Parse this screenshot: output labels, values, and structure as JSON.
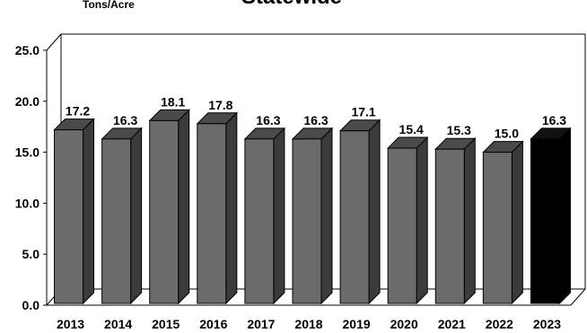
{
  "chart_data": {
    "type": "bar",
    "title": "Statewide",
    "unit_label": "Tons/Acre",
    "categories": [
      "2013",
      "2014",
      "2015",
      "2016",
      "2017",
      "2018",
      "2019",
      "2020",
      "2021",
      "2022",
      "2023"
    ],
    "values": [
      17.2,
      16.3,
      18.1,
      17.8,
      16.3,
      16.3,
      17.1,
      15.4,
      15.3,
      15.0,
      16.3
    ],
    "data_labels": [
      "17.2",
      "16.3",
      "18.1",
      "17.8",
      "16.3",
      "16.3",
      "17.1",
      "15.4",
      "15.3",
      "15.0",
      "16.3"
    ],
    "y_ticks": [
      "0.0",
      "5.0",
      "10.0",
      "15.0",
      "20.0",
      "25.0"
    ],
    "ylim": [
      0,
      25
    ],
    "grid": false,
    "legend": "none",
    "bar_colors": {
      "default_front": "#6b6b6b",
      "default_top": "#4a4a4a",
      "default_side": "#3b3b3b",
      "highlight_front": "#000000",
      "highlight_top": "#111111",
      "highlight_side": "#000000"
    },
    "highlight_category": "2023"
  }
}
